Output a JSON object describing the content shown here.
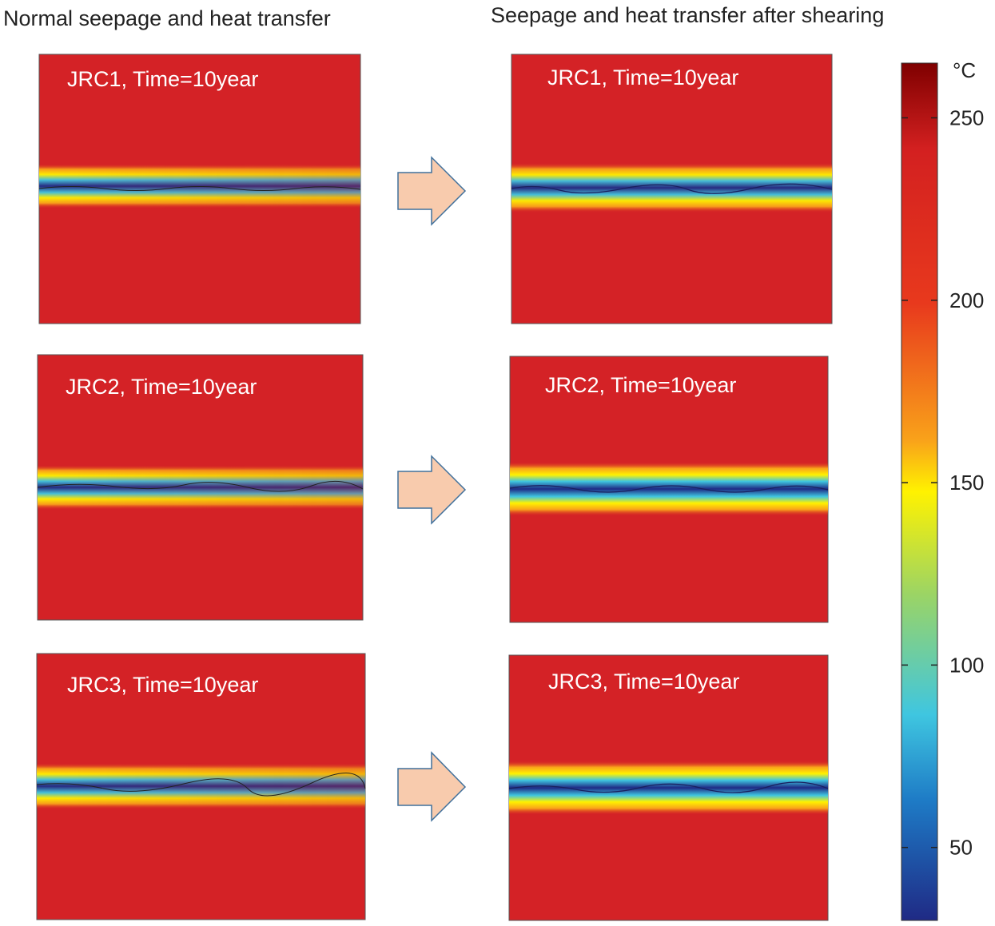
{
  "headings": {
    "left": "Normal seepage and heat transfer",
    "right": "Seepage and heat transfer after shearing"
  },
  "panels": {
    "normal": [
      {
        "label": "JRC1, Time=10year"
      },
      {
        "label": "JRC2, Time=10year"
      },
      {
        "label": "JRC3, Time=10year"
      }
    ],
    "sheared": [
      {
        "label": "JRC1, Time=10year"
      },
      {
        "label": "JRC2, Time=10year"
      },
      {
        "label": "JRC3, Time=10year"
      }
    ]
  },
  "colorbar": {
    "unit": "°C",
    "ticks": [
      {
        "value": 250,
        "label": "250"
      },
      {
        "value": 200,
        "label": "200"
      },
      {
        "value": 150,
        "label": "150"
      },
      {
        "value": 100,
        "label": "100"
      },
      {
        "value": 50,
        "label": "50"
      }
    ],
    "range": [
      30,
      265
    ],
    "stops": [
      "#7f0000",
      "#d32020",
      "#e8391d",
      "#f9a21a",
      "#fff200",
      "#9bd465",
      "#3fc6e0",
      "#1e7bc6",
      "#1f2a85"
    ]
  },
  "colors": {
    "panel_background": "#d42226",
    "arrow_fill": "#f8cbad",
    "arrow_stroke": "#41719c"
  }
}
